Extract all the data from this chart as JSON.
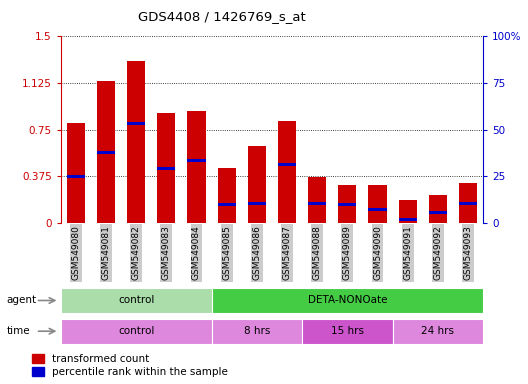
{
  "title": "GDS4408 / 1426769_s_at",
  "samples": [
    "GSM549080",
    "GSM549081",
    "GSM549082",
    "GSM549083",
    "GSM549084",
    "GSM549085",
    "GSM549086",
    "GSM549087",
    "GSM549088",
    "GSM549089",
    "GSM549090",
    "GSM549091",
    "GSM549092",
    "GSM549093"
  ],
  "red_values": [
    0.8,
    1.14,
    1.3,
    0.88,
    0.9,
    0.44,
    0.62,
    0.82,
    0.37,
    0.3,
    0.3,
    0.18,
    0.22,
    0.32
  ],
  "blue_values": [
    0.375,
    0.565,
    0.8,
    0.44,
    0.5,
    0.15,
    0.155,
    0.47,
    0.155,
    0.15,
    0.11,
    0.025,
    0.085,
    0.155
  ],
  "ylim_left": [
    0,
    1.5
  ],
  "ylim_right": [
    0,
    100
  ],
  "yticks_left": [
    0,
    0.375,
    0.75,
    1.125,
    1.5
  ],
  "yticks_right": [
    0,
    25,
    50,
    75,
    100
  ],
  "ytick_labels_left": [
    "0",
    "0.375",
    "0.75",
    "1.125",
    "1.5"
  ],
  "ytick_labels_right": [
    "0",
    "25",
    "50",
    "75",
    "100%"
  ],
  "agent_groups": [
    {
      "label": "control",
      "start": 0,
      "end": 5,
      "color": "#aaddaa"
    },
    {
      "label": "DETA-NONOate",
      "start": 5,
      "end": 14,
      "color": "#44cc44"
    }
  ],
  "time_groups": [
    {
      "label": "control",
      "start": 0,
      "end": 5,
      "color": "#dd88dd"
    },
    {
      "label": "8 hrs",
      "start": 5,
      "end": 8,
      "color": "#dd88dd"
    },
    {
      "label": "15 hrs",
      "start": 8,
      "end": 11,
      "color": "#cc55cc"
    },
    {
      "label": "24 hrs",
      "start": 11,
      "end": 14,
      "color": "#dd88dd"
    }
  ],
  "bar_color_red": "#cc0000",
  "bar_color_blue": "#0000cc",
  "left_axis_color": "#cc0000",
  "right_axis_color": "#0000cc",
  "blue_bar_thickness": 0.025
}
